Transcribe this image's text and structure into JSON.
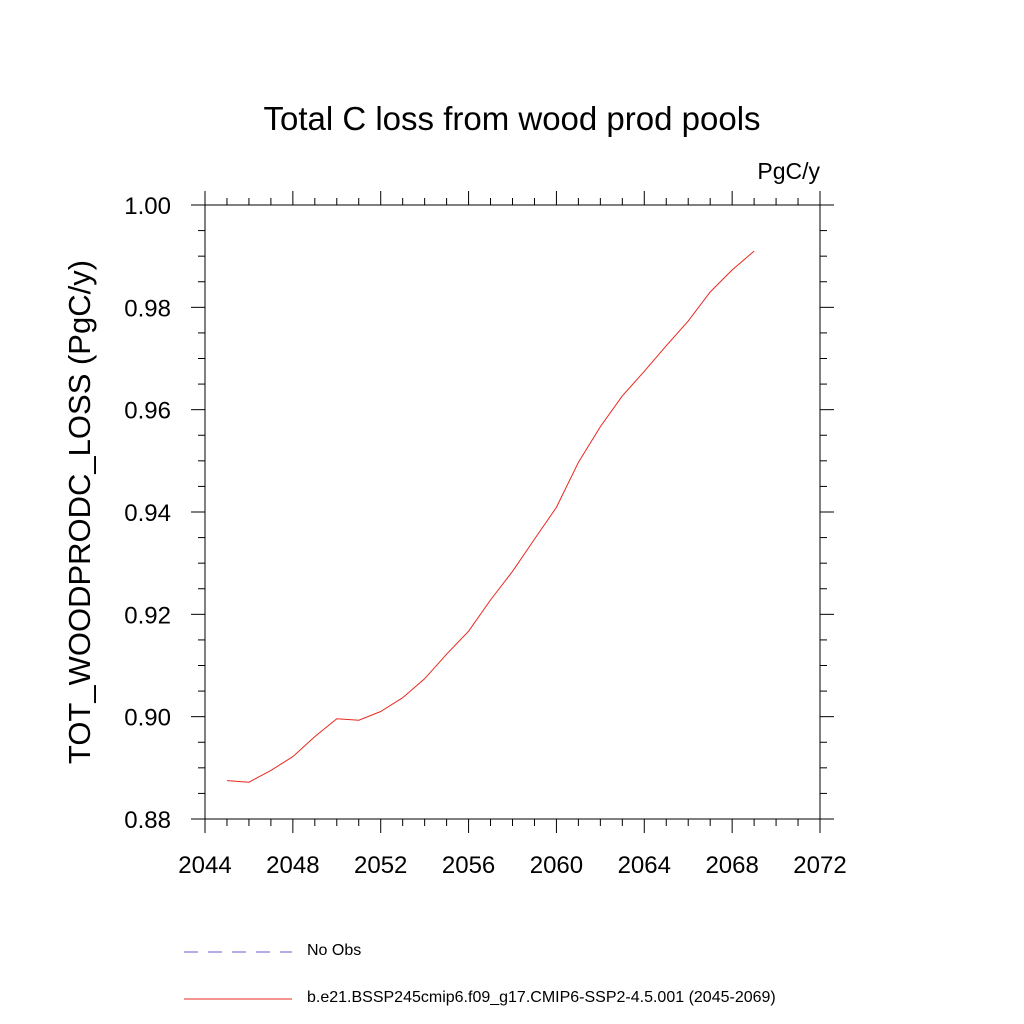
{
  "chart_data": {
    "type": "line",
    "title": "Total C loss from wood prod pools",
    "units": "PgC/y",
    "ylabel": "TOT_WOODPRODC_LOSS  (PgC/y)",
    "xlabel": "",
    "xlim": [
      2044,
      2072
    ],
    "ylim": [
      0.88,
      1.0
    ],
    "x_major_ticks": [
      2044,
      2048,
      2052,
      2056,
      2060,
      2064,
      2068,
      2072
    ],
    "x_tick_labels": [
      "2044",
      "2048",
      "2052",
      "2056",
      "2060",
      "2064",
      "2068",
      "2072"
    ],
    "y_major_ticks": [
      0.88,
      0.9,
      0.92,
      0.94,
      0.96,
      0.98,
      1.0
    ],
    "y_tick_labels": [
      "0.88",
      "0.90",
      "0.92",
      "0.94",
      "0.96",
      "0.98",
      "1.00"
    ],
    "grid": false,
    "legend_position": "bottom",
    "series": [
      {
        "name": "No Obs",
        "color": "#6a5acd",
        "style": "dashed",
        "x": [],
        "y": []
      },
      {
        "name": "b.e21.BSSP245cmip6.f09_g17.CMIP6-SSP2-4.5.001 (2045-2069)",
        "color": "#e8281e",
        "style": "solid",
        "x": [
          2045,
          2046,
          2047,
          2048,
          2049,
          2050,
          2051,
          2052,
          2053,
          2054,
          2055,
          2056,
          2057,
          2058,
          2059,
          2060,
          2061,
          2062,
          2063,
          2064,
          2065,
          2066,
          2067,
          2068,
          2069
        ],
        "y": [
          0.8875,
          0.8872,
          0.8895,
          0.8922,
          0.8961,
          0.8996,
          0.8993,
          0.901,
          0.9037,
          0.9074,
          0.9122,
          0.9167,
          0.9228,
          0.9284,
          0.9347,
          0.9409,
          0.9497,
          0.9567,
          0.9627,
          0.9675,
          0.9725,
          0.9773,
          0.983,
          0.9873,
          0.991
        ]
      }
    ]
  }
}
